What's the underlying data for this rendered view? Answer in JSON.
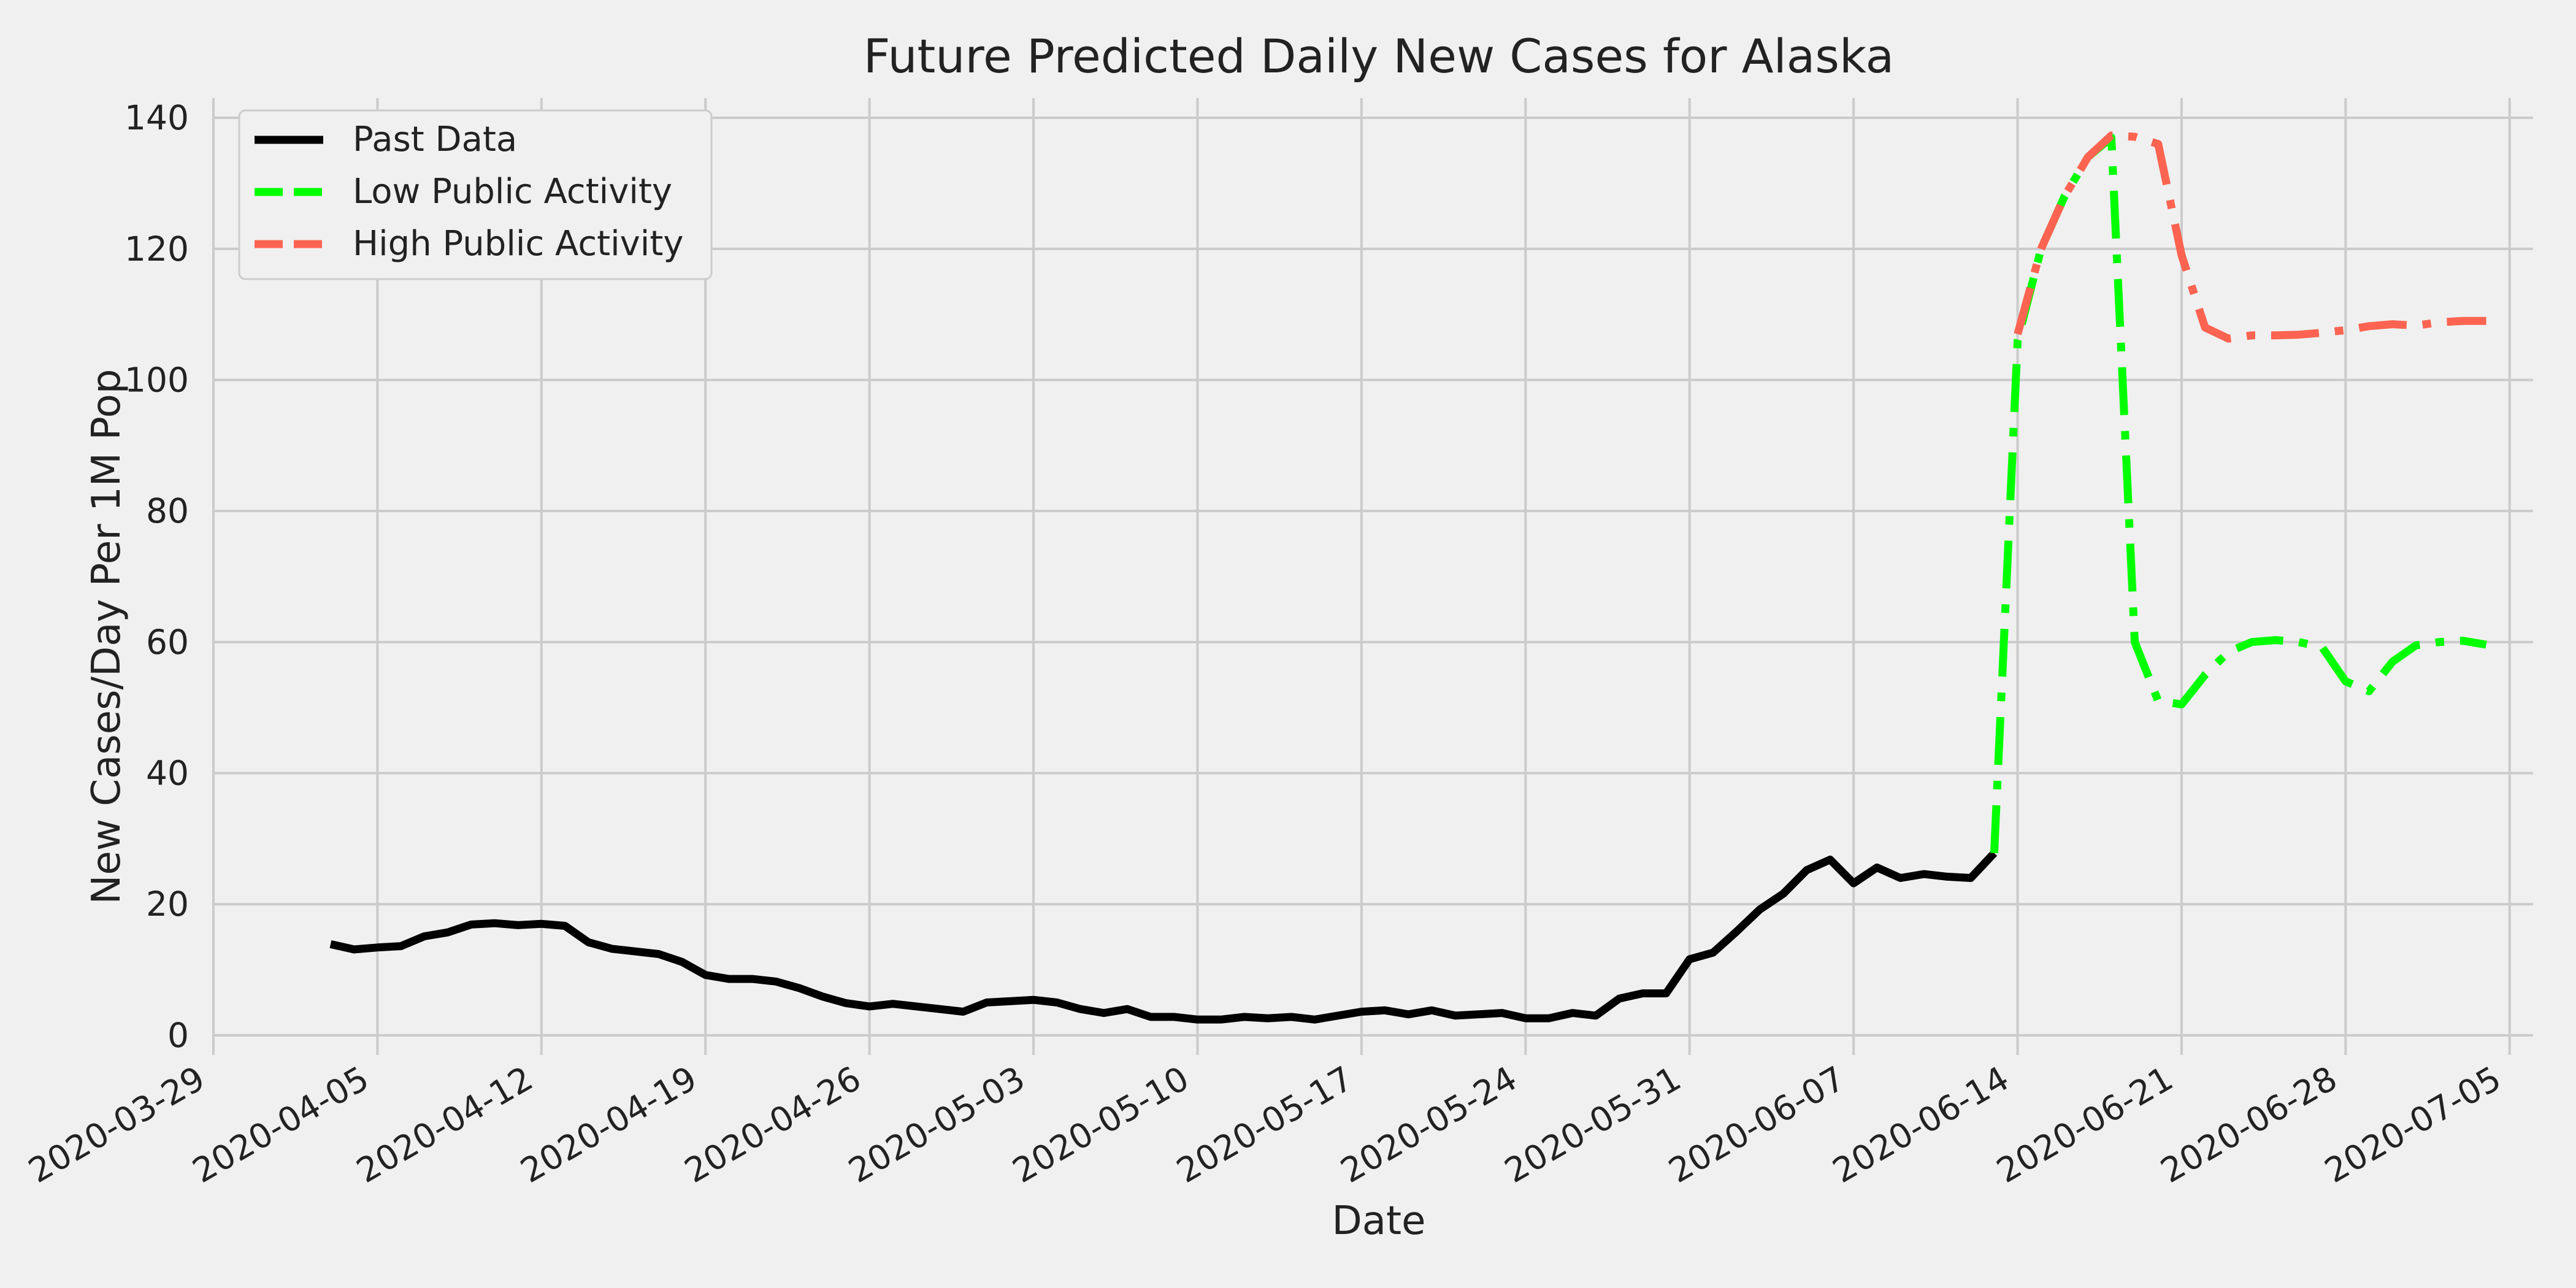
{
  "chart_data": {
    "type": "line",
    "title": "Future Predicted Daily New Cases for Alaska",
    "xlabel": "Date",
    "ylabel": "New Cases/Day Per 1M Pop",
    "xlim": [
      "2020-03-29",
      "2020-07-06"
    ],
    "ylim": [
      -3,
      143
    ],
    "x_ticks": [
      "2020-03-29",
      "2020-04-05",
      "2020-04-12",
      "2020-04-19",
      "2020-04-26",
      "2020-05-03",
      "2020-05-10",
      "2020-05-17",
      "2020-05-24",
      "2020-05-31",
      "2020-06-07",
      "2020-06-14",
      "2020-06-21",
      "2020-06-28",
      "2020-07-05"
    ],
    "y_ticks": [
      0,
      20,
      40,
      60,
      80,
      100,
      120,
      140
    ],
    "grid": true,
    "legend_position": "top-left",
    "series": [
      {
        "name": "Past Data",
        "color": "#000000",
        "style": "solid",
        "points": [
          [
            "2020-04-03",
            13.9
          ],
          [
            "2020-04-04",
            13.1
          ],
          [
            "2020-04-05",
            13.4
          ],
          [
            "2020-04-06",
            13.6
          ],
          [
            "2020-04-07",
            15.1
          ],
          [
            "2020-04-08",
            15.7
          ],
          [
            "2020-04-09",
            16.9
          ],
          [
            "2020-04-10",
            17.1
          ],
          [
            "2020-04-11",
            16.8
          ],
          [
            "2020-04-12",
            17.0
          ],
          [
            "2020-04-13",
            16.7
          ],
          [
            "2020-04-14",
            14.2
          ],
          [
            "2020-04-15",
            13.2
          ],
          [
            "2020-04-16",
            12.8
          ],
          [
            "2020-04-17",
            12.4
          ],
          [
            "2020-04-18",
            11.2
          ],
          [
            "2020-04-19",
            9.2
          ],
          [
            "2020-04-20",
            8.6
          ],
          [
            "2020-04-21",
            8.6
          ],
          [
            "2020-04-22",
            8.2
          ],
          [
            "2020-04-23",
            7.2
          ],
          [
            "2020-04-24",
            5.9
          ],
          [
            "2020-04-25",
            4.9
          ],
          [
            "2020-04-26",
            4.4
          ],
          [
            "2020-04-27",
            4.8
          ],
          [
            "2020-04-28",
            4.4
          ],
          [
            "2020-04-29",
            4.0
          ],
          [
            "2020-04-30",
            3.6
          ],
          [
            "2020-05-01",
            5.0
          ],
          [
            "2020-05-02",
            5.2
          ],
          [
            "2020-05-03",
            5.4
          ],
          [
            "2020-05-04",
            5.0
          ],
          [
            "2020-05-05",
            4.0
          ],
          [
            "2020-05-06",
            3.4
          ],
          [
            "2020-05-07",
            4.0
          ],
          [
            "2020-05-08",
            2.8
          ],
          [
            "2020-05-09",
            2.8
          ],
          [
            "2020-05-10",
            2.4
          ],
          [
            "2020-05-11",
            2.4
          ],
          [
            "2020-05-12",
            2.8
          ],
          [
            "2020-05-13",
            2.6
          ],
          [
            "2020-05-14",
            2.8
          ],
          [
            "2020-05-15",
            2.4
          ],
          [
            "2020-05-16",
            3.0
          ],
          [
            "2020-05-17",
            3.6
          ],
          [
            "2020-05-18",
            3.8
          ],
          [
            "2020-05-19",
            3.2
          ],
          [
            "2020-05-20",
            3.8
          ],
          [
            "2020-05-21",
            3.0
          ],
          [
            "2020-05-22",
            3.2
          ],
          [
            "2020-05-23",
            3.4
          ],
          [
            "2020-05-24",
            2.6
          ],
          [
            "2020-05-25",
            2.6
          ],
          [
            "2020-05-26",
            3.4
          ],
          [
            "2020-05-27",
            3.0
          ],
          [
            "2020-05-28",
            5.6
          ],
          [
            "2020-05-29",
            6.4
          ],
          [
            "2020-05-30",
            6.4
          ],
          [
            "2020-05-31",
            11.6
          ],
          [
            "2020-06-01",
            12.6
          ],
          [
            "2020-06-02",
            15.8
          ],
          [
            "2020-06-03",
            19.2
          ],
          [
            "2020-06-04",
            21.6
          ],
          [
            "2020-06-05",
            25.2
          ],
          [
            "2020-06-06",
            26.8
          ],
          [
            "2020-06-07",
            23.2
          ],
          [
            "2020-06-08",
            25.6
          ],
          [
            "2020-06-09",
            24.0
          ],
          [
            "2020-06-10",
            24.6
          ],
          [
            "2020-06-11",
            24.2
          ],
          [
            "2020-06-12",
            24.0
          ],
          [
            "2020-06-13",
            27.8
          ]
        ]
      },
      {
        "name": "Low Public Activity",
        "color": "#00ff00",
        "style": "dashdot",
        "points": [
          [
            "2020-06-13",
            27.8
          ],
          [
            "2020-06-14",
            106.0
          ],
          [
            "2020-06-15",
            120.0
          ],
          [
            "2020-06-16",
            128.0
          ],
          [
            "2020-06-17",
            134.0
          ],
          [
            "2020-06-18",
            137.0
          ],
          [
            "2020-06-19",
            60.0
          ],
          [
            "2020-06-20",
            51.0
          ],
          [
            "2020-06-21",
            50.5
          ],
          [
            "2020-06-22",
            55.0
          ],
          [
            "2020-06-23",
            58.5
          ],
          [
            "2020-06-24",
            60.0
          ],
          [
            "2020-06-25",
            60.3
          ],
          [
            "2020-06-26",
            60.0
          ],
          [
            "2020-06-27",
            59.2
          ],
          [
            "2020-06-28",
            54.0
          ],
          [
            "2020-06-29",
            52.5
          ],
          [
            "2020-06-30",
            57.0
          ],
          [
            "2020-07-01",
            59.5
          ],
          [
            "2020-07-02",
            60.0
          ],
          [
            "2020-07-03",
            60.2
          ],
          [
            "2020-07-04",
            59.6
          ]
        ]
      },
      {
        "name": "High Public Activity",
        "color": "#fc6451",
        "style": "dashdot",
        "points": [
          [
            "2020-06-14",
            107.0
          ],
          [
            "2020-06-15",
            120.0
          ],
          [
            "2020-06-16",
            128.0
          ],
          [
            "2020-06-17",
            134.0
          ],
          [
            "2020-06-18",
            137.3
          ],
          [
            "2020-06-19",
            137.1
          ],
          [
            "2020-06-20",
            136.0
          ],
          [
            "2020-06-21",
            119.0
          ],
          [
            "2020-06-22",
            108.0
          ],
          [
            "2020-06-23",
            106.3
          ],
          [
            "2020-06-24",
            106.8
          ],
          [
            "2020-06-25",
            106.8
          ],
          [
            "2020-06-26",
            106.9
          ],
          [
            "2020-06-27",
            107.2
          ],
          [
            "2020-06-28",
            107.6
          ],
          [
            "2020-06-29",
            108.2
          ],
          [
            "2020-06-30",
            108.5
          ],
          [
            "2020-07-01",
            108.3
          ],
          [
            "2020-07-02",
            108.8
          ],
          [
            "2020-07-03",
            109.0
          ],
          [
            "2020-07-04",
            109.0
          ]
        ]
      }
    ]
  }
}
